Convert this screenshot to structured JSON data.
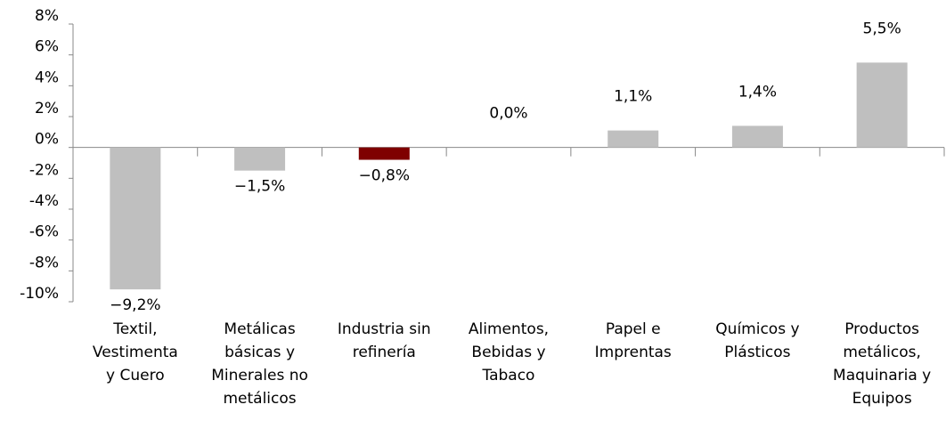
{
  "chart_data": {
    "type": "bar",
    "categories": [
      [
        "Textil,",
        "Vestimenta",
        "y Cuero"
      ],
      [
        "Metálicas",
        "básicas y",
        "Minerales no",
        "metálicos"
      ],
      [
        "Industria sin",
        "refinería"
      ],
      [
        "Alimentos,",
        "Bebidas y",
        "Tabaco"
      ],
      [
        "Papel e",
        "Imprentas"
      ],
      [
        "Químicos y",
        "Plásticos"
      ],
      [
        "Productos",
        "metálicos,",
        "Maquinaria y",
        "Equipos"
      ]
    ],
    "values": [
      -9.2,
      -1.5,
      -0.8,
      0.0,
      1.1,
      1.4,
      5.5
    ],
    "value_labels": [
      "−9,2%",
      "−1,5%",
      "−0,8%",
      "0,0%",
      "1,1%",
      "1,4%",
      "5,5%"
    ],
    "colors": [
      "#bfbfbf",
      "#bfbfbf",
      "#7f0000",
      "#bfbfbf",
      "#bfbfbf",
      "#bfbfbf",
      "#bfbfbf"
    ],
    "ylim": [
      -10,
      8
    ],
    "yticks": [
      {
        "value": 8,
        "label": "8%"
      },
      {
        "value": 6,
        "label": "6%"
      },
      {
        "value": 4,
        "label": "4%"
      },
      {
        "value": 2,
        "label": "2%"
      },
      {
        "value": 0,
        "label": "0%"
      },
      {
        "value": -2,
        "label": "-2%"
      },
      {
        "value": -4,
        "label": "-4%"
      },
      {
        "value": -6,
        "label": "-6%"
      },
      {
        "value": -8,
        "label": "-8%"
      },
      {
        "value": -10,
        "label": "-10%"
      }
    ],
    "grid": false
  }
}
